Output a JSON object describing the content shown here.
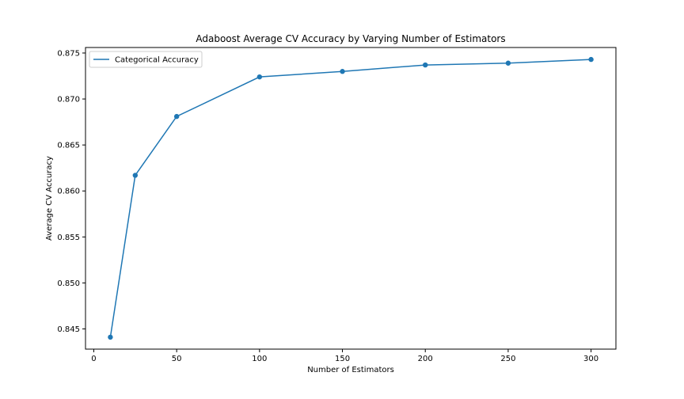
{
  "chart_data": {
    "type": "line",
    "title": "Adaboost Average CV Accuracy by Varying Number of Estimators",
    "xlabel": "Number of Estimators",
    "ylabel": "Average CV Accuracy",
    "xlim": [
      -5,
      315
    ],
    "ylim": [
      0.8428,
      0.8756
    ],
    "xticks": [
      0,
      50,
      100,
      150,
      200,
      250,
      300
    ],
    "yticks": [
      0.845,
      0.85,
      0.855,
      0.86,
      0.865,
      0.87,
      0.875
    ],
    "ytick_labels": [
      "0.845",
      "0.850",
      "0.855",
      "0.860",
      "0.865",
      "0.870",
      "0.875"
    ],
    "grid": false,
    "legend_position": "upper-left",
    "series": [
      {
        "name": "Categorical Accuracy",
        "color": "#1f77b4",
        "marker": "circle",
        "x": [
          10,
          25,
          50,
          100,
          150,
          200,
          250,
          300
        ],
        "y": [
          0.8441,
          0.8617,
          0.8681,
          0.8724,
          0.873,
          0.8737,
          0.8739,
          0.8743
        ]
      }
    ]
  }
}
